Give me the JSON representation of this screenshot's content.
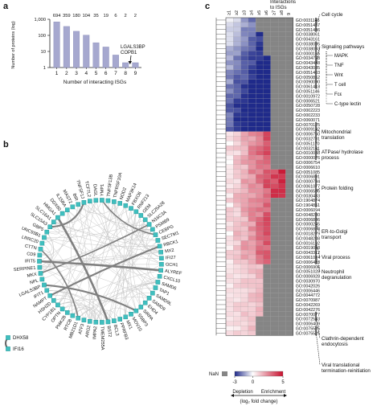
{
  "panel_labels": {
    "a": "a",
    "b": "b",
    "c": "c"
  },
  "chart_data": [
    {
      "type": "bar",
      "panel": "a",
      "categories": [
        "1",
        "2",
        "3",
        "4",
        "5",
        "6",
        "7",
        "8",
        "9"
      ],
      "values": [
        694,
        359,
        180,
        104,
        35,
        19,
        6,
        2,
        2
      ],
      "value_labels": [
        "694",
        "359",
        "180",
        "104",
        "35",
        "19",
        "6",
        "2",
        "2"
      ],
      "ylabel": "Number of proteins (log)",
      "xlabel": "Number of interacting ISGs",
      "yscale": "log",
      "ylim": [
        1,
        1000
      ],
      "yticks": [
        "1,000",
        "100",
        "10",
        "1"
      ],
      "annotation": {
        "lines": [
          "LGALS3BP",
          "COPB1"
        ],
        "points_to": "9"
      },
      "bar_color": "#a6a8cf"
    },
    {
      "type": "network",
      "panel": "b",
      "nodes": [
        "FBXO6",
        "RNF213",
        "GEM",
        "SLC25A28",
        "N16C3A",
        "PSMB9",
        "CEBPG",
        "SECTM1",
        "RBCK1",
        "MX2",
        "IFI27",
        "GCH1",
        "ALYREF",
        "CXCL10",
        "SAMD6",
        "TAP1",
        "SAMD9L",
        "SAMD9",
        "EHD4",
        "SIRPA",
        "SSBP3",
        "MOV10",
        "MX1",
        "PPRFB3",
        "BCL3",
        "BST2",
        "TMEM255A",
        "IMPA2",
        "ARG2",
        "ATF3",
        "MB21D1",
        "RTCB",
        "PI4K2B",
        "OPTN",
        "CYP1B1",
        "HSH2D",
        "NAMPT",
        "IFIT1",
        "LGALS3BP",
        "NPL",
        "MKX",
        "SERPINE1",
        "IFIT5",
        "CD9",
        "CTTN",
        "LRRC20",
        "UNC93B1",
        "GBP5",
        "SLC15A3",
        "SLC16A1",
        "HMGA1",
        "DDX60",
        "IL15RA",
        "MAST2",
        "BIR",
        "TNFSF1J",
        "TCF7L2",
        "DAGL",
        "YMP1",
        "TNFSF13B",
        "TNFRSF10A",
        "NOD2",
        "MAP3K14"
      ],
      "isolated_pair": [
        "DHX58",
        "IFI16"
      ],
      "node_color": "#3fbfbf"
    },
    {
      "type": "heatmap",
      "panel": "c",
      "title": "Interactions to ISGs",
      "columns": [
        "≥1",
        "≥2",
        "≥3",
        "≥4",
        "≥5",
        "≥6",
        "≥7",
        "≥8",
        "9"
      ],
      "rows": [
        "GO:0031145",
        "GO:0051437",
        "GO:0051436",
        "GO:0038061",
        "GO:0043161",
        "GO:0038095",
        "GO:0038093",
        "GO:0000165",
        "GO:0034728",
        "GO:0043488",
        "GO:0043085",
        "GO:0051403",
        "GO:0050852",
        "GO:0090090",
        "GO:0061418",
        "GO:0051146",
        "GO:0010972",
        "GO:0006521",
        "GO:0050728",
        "GO:0002223",
        "GO:0002233",
        "GO:0060071",
        "GO:0070125",
        "GO:0009132",
        "GO:0006760",
        "GO:0032781",
        "GO:0051170",
        "GO:0032101",
        "GO:0010038",
        "GO:0000076",
        "GO:0006754",
        "GO:0006610",
        "GO:0051085",
        "GO:0006891",
        "GO:0000734",
        "GO:0061077",
        "GO:0006506",
        "GO:0030433",
        "GO:1904874",
        "GO:1904851",
        "GO:0006094",
        "GO:0048280",
        "GO:0006886",
        "GO:0000245",
        "GO:0006888",
        "GO:0018279",
        "GO:0048208",
        "GO:0016192",
        "GO:0019058",
        "GO:0043312",
        "GO:0061024",
        "GO:0006418",
        "GO:0006906",
        "GO:0051028",
        "GO:0006928",
        "GO:0030970",
        "GO:0042026",
        "GO:0006446",
        "GO:0044772",
        "GO:0070987",
        "GO:0042269",
        "GO:0042276",
        "GO:0070077",
        "GO:0072583",
        "GO:0006409",
        "GO:0075525",
        "GO:0075525"
      ],
      "categories": [
        {
          "label": "Cell cycle",
          "lines": [
            "Cell cycle"
          ]
        },
        {
          "label": "Signaling pathways",
          "lines": [
            "Signaling pathways"
          ],
          "sub": [
            "MAPK",
            "TNF",
            "Wnt",
            "T cell",
            "Fcε",
            "C-type lectin"
          ]
        },
        {
          "label": "Mitochondrial translation",
          "lines": [
            "Mitochondrial",
            "translation"
          ]
        },
        {
          "label": "ATPase/ hydrolase process",
          "lines": [
            "ATPase/ hydrolase",
            "process"
          ]
        },
        {
          "label": "Protein folding",
          "lines": [
            "Protein folding"
          ]
        },
        {
          "label": "ER-to-Golgi transport",
          "lines": [
            "ER-to-Golgi",
            "transport"
          ]
        },
        {
          "label": "Viral process",
          "lines": [
            "Viral process"
          ]
        },
        {
          "label": "Neutrophil degranulation",
          "lines": [
            "Neutrophil",
            "degranulation"
          ]
        },
        {
          "label": "Clathrin-dependent endocytosis",
          "lines": [
            "Clathrin-dependent",
            "endocytosis"
          ]
        },
        {
          "label": "Viral translational termination-reinitiation",
          "lines": [
            "Viral translational",
            "termination-reinitiation"
          ]
        }
      ],
      "colorbar": {
        "min": -3,
        "mid": 0,
        "max": 5,
        "ticks": [
          "-3",
          "0",
          "5"
        ],
        "nan_label": "NaN",
        "depletion": "Depletion",
        "enrichment": "Enrichment",
        "label": "(log₂ fold change)"
      },
      "colors": {
        "low": "#1f2a8a",
        "mid": "#ffffff",
        "high": "#c8102e",
        "nan": "#858585"
      }
    }
  ]
}
